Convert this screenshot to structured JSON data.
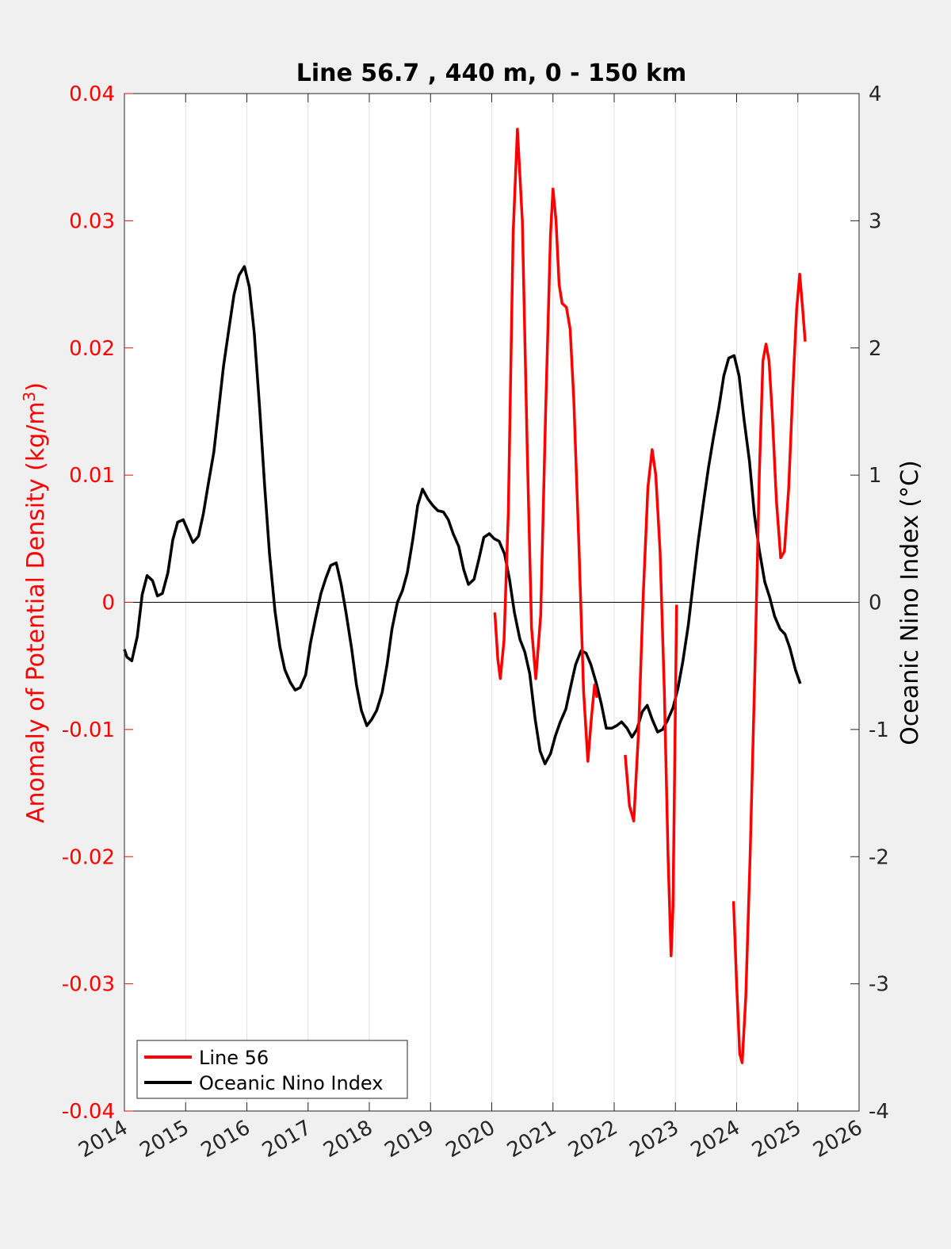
{
  "chart_data": {
    "type": "line",
    "title": "Line 56.7 , 440 m, 0 - 150 km",
    "ylabel_left": "Anomaly of Potential Density (kg/m³)",
    "ylabel_left_base": "Anomaly of Potential Density (kg/m",
    "ylabel_left_sup": "3",
    "ylabel_left_tail": ")",
    "ylabel_right": "Oceanic Nino Index (°C)",
    "xlim": [
      2014,
      2026
    ],
    "ylim_left": [
      -0.04,
      0.04
    ],
    "ylim_right": [
      -4,
      4
    ],
    "x_ticks": [
      "2014",
      "2015",
      "2016",
      "2017",
      "2018",
      "2019",
      "2020",
      "2021",
      "2022",
      "2023",
      "2024",
      "2025",
      "2026"
    ],
    "y_left_ticks": [
      "0.04",
      "0.03",
      "0.02",
      "0.01",
      "0",
      "-0.01",
      "-0.02",
      "-0.03",
      "-0.04"
    ],
    "y_right_ticks": [
      "4",
      "3",
      "2",
      "1",
      "0",
      "-1",
      "-2",
      "-3",
      "-4"
    ],
    "grid": "vertical",
    "legend_position": "bottom-left",
    "colors": {
      "left_axis": "#ff0000",
      "line56": "#ff0000",
      "oni": "#000000"
    },
    "series": [
      {
        "name": "Line 56",
        "axis": "left",
        "segments": [
          [
            [
              2020.05,
              -0.0008
            ],
            [
              2020.1,
              -0.0045
            ],
            [
              2020.14,
              -0.006
            ],
            [
              2020.2,
              -0.003
            ],
            [
              2020.27,
              0.007
            ],
            [
              2020.35,
              0.029
            ],
            [
              2020.42,
              0.0372
            ],
            [
              2020.5,
              0.03
            ],
            [
              2020.58,
              0.012
            ],
            [
              2020.65,
              -0.002
            ],
            [
              2020.72,
              -0.006
            ],
            [
              2020.8,
              -0.001
            ],
            [
              2020.88,
              0.015
            ],
            [
              2020.96,
              0.029
            ],
            [
              2021.0,
              0.0325
            ],
            [
              2021.05,
              0.03
            ],
            [
              2021.1,
              0.025
            ],
            [
              2021.15,
              0.0235
            ],
            [
              2021.22,
              0.0232
            ],
            [
              2021.28,
              0.0215
            ],
            [
              2021.34,
              0.016
            ],
            [
              2021.42,
              0.005
            ],
            [
              2021.5,
              -0.007
            ],
            [
              2021.57,
              -0.0125
            ],
            [
              2021.63,
              -0.009
            ],
            [
              2021.68,
              -0.0065
            ],
            [
              2021.72,
              -0.0075
            ]
          ],
          [
            [
              2022.18,
              -0.012
            ],
            [
              2022.25,
              -0.016
            ],
            [
              2022.32,
              -0.0172
            ],
            [
              2022.4,
              -0.01
            ],
            [
              2022.47,
              0.0
            ],
            [
              2022.55,
              0.009
            ],
            [
              2022.62,
              0.012
            ],
            [
              2022.68,
              0.01
            ],
            [
              2022.75,
              0.004
            ],
            [
              2022.82,
              -0.007
            ],
            [
              2022.88,
              -0.02
            ],
            [
              2022.93,
              -0.0278
            ],
            [
              2022.96,
              -0.024
            ],
            [
              2022.99,
              -0.012
            ],
            [
              2023.02,
              -0.0002
            ]
          ],
          [
            [
              2023.95,
              -0.0235
            ],
            [
              2024.0,
              -0.03
            ],
            [
              2024.05,
              -0.0355
            ],
            [
              2024.09,
              -0.0362
            ],
            [
              2024.15,
              -0.031
            ],
            [
              2024.22,
              -0.02
            ],
            [
              2024.3,
              -0.005
            ],
            [
              2024.37,
              0.01
            ],
            [
              2024.43,
              0.019
            ],
            [
              2024.48,
              0.0203
            ],
            [
              2024.53,
              0.019
            ],
            [
              2024.58,
              0.015
            ],
            [
              2024.65,
              0.008
            ],
            [
              2024.72,
              0.0035
            ],
            [
              2024.78,
              0.004
            ],
            [
              2024.85,
              0.009
            ],
            [
              2024.92,
              0.017
            ],
            [
              2024.98,
              0.023
            ],
            [
              2025.03,
              0.0258
            ],
            [
              2025.08,
              0.023
            ],
            [
              2025.12,
              0.0205
            ]
          ]
        ]
      },
      {
        "name": "Oceanic Nino Index",
        "axis": "right",
        "segments": [
          [
            [
              2014.0,
              -0.37
            ],
            [
              2014.04,
              -0.43
            ],
            [
              2014.12,
              -0.46
            ],
            [
              2014.21,
              -0.27
            ],
            [
              2014.29,
              0.06
            ],
            [
              2014.37,
              0.21
            ],
            [
              2014.46,
              0.17
            ],
            [
              2014.54,
              0.05
            ],
            [
              2014.62,
              0.07
            ],
            [
              2014.71,
              0.23
            ],
            [
              2014.79,
              0.49
            ],
            [
              2014.87,
              0.63
            ],
            [
              2014.96,
              0.65
            ],
            [
              2015.04,
              0.56
            ],
            [
              2015.12,
              0.47
            ],
            [
              2015.21,
              0.52
            ],
            [
              2015.29,
              0.7
            ],
            [
              2015.37,
              0.93
            ],
            [
              2015.46,
              1.18
            ],
            [
              2015.54,
              1.52
            ],
            [
              2015.62,
              1.86
            ],
            [
              2015.71,
              2.16
            ],
            [
              2015.79,
              2.42
            ],
            [
              2015.87,
              2.57
            ],
            [
              2015.96,
              2.64
            ],
            [
              2016.04,
              2.48
            ],
            [
              2016.12,
              2.12
            ],
            [
              2016.21,
              1.52
            ],
            [
              2016.29,
              0.92
            ],
            [
              2016.37,
              0.38
            ],
            [
              2016.46,
              -0.07
            ],
            [
              2016.54,
              -0.35
            ],
            [
              2016.62,
              -0.53
            ],
            [
              2016.71,
              -0.63
            ],
            [
              2016.79,
              -0.69
            ],
            [
              2016.87,
              -0.67
            ],
            [
              2016.96,
              -0.57
            ],
            [
              2017.04,
              -0.32
            ],
            [
              2017.12,
              -0.13
            ],
            [
              2017.21,
              0.07
            ],
            [
              2017.29,
              0.19
            ],
            [
              2017.37,
              0.29
            ],
            [
              2017.46,
              0.31
            ],
            [
              2017.54,
              0.14
            ],
            [
              2017.62,
              -0.08
            ],
            [
              2017.71,
              -0.36
            ],
            [
              2017.79,
              -0.65
            ],
            [
              2017.87,
              -0.85
            ],
            [
              2017.96,
              -0.97
            ],
            [
              2018.04,
              -0.92
            ],
            [
              2018.12,
              -0.85
            ],
            [
              2018.21,
              -0.71
            ],
            [
              2018.29,
              -0.49
            ],
            [
              2018.37,
              -0.21
            ],
            [
              2018.46,
              0.0
            ],
            [
              2018.54,
              0.09
            ],
            [
              2018.62,
              0.23
            ],
            [
              2018.71,
              0.49
            ],
            [
              2018.79,
              0.76
            ],
            [
              2018.87,
              0.89
            ],
            [
              2018.96,
              0.81
            ],
            [
              2019.04,
              0.76
            ],
            [
              2019.12,
              0.72
            ],
            [
              2019.21,
              0.71
            ],
            [
              2019.29,
              0.65
            ],
            [
              2019.37,
              0.54
            ],
            [
              2019.46,
              0.44
            ],
            [
              2019.54,
              0.26
            ],
            [
              2019.62,
              0.14
            ],
            [
              2019.71,
              0.18
            ],
            [
              2019.79,
              0.34
            ],
            [
              2019.87,
              0.51
            ],
            [
              2019.96,
              0.54
            ],
            [
              2020.04,
              0.5
            ],
            [
              2020.12,
              0.48
            ],
            [
              2020.21,
              0.38
            ],
            [
              2020.29,
              0.18
            ],
            [
              2020.37,
              -0.08
            ],
            [
              2020.46,
              -0.29
            ],
            [
              2020.54,
              -0.39
            ],
            [
              2020.62,
              -0.56
            ],
            [
              2020.71,
              -0.92
            ],
            [
              2020.79,
              -1.17
            ],
            [
              2020.87,
              -1.27
            ],
            [
              2020.96,
              -1.19
            ],
            [
              2021.04,
              -1.05
            ],
            [
              2021.12,
              -0.94
            ],
            [
              2021.21,
              -0.84
            ],
            [
              2021.29,
              -0.66
            ],
            [
              2021.37,
              -0.49
            ],
            [
              2021.46,
              -0.38
            ],
            [
              2021.54,
              -0.4
            ],
            [
              2021.62,
              -0.49
            ],
            [
              2021.71,
              -0.64
            ],
            [
              2021.79,
              -0.8
            ],
            [
              2021.87,
              -0.99
            ],
            [
              2021.96,
              -0.99
            ],
            [
              2022.04,
              -0.97
            ],
            [
              2022.12,
              -0.94
            ],
            [
              2022.21,
              -0.99
            ],
            [
              2022.29,
              -1.06
            ],
            [
              2022.37,
              -1.0
            ],
            [
              2022.46,
              -0.86
            ],
            [
              2022.54,
              -0.81
            ],
            [
              2022.62,
              -0.92
            ],
            [
              2022.71,
              -1.02
            ],
            [
              2022.79,
              -1.0
            ],
            [
              2022.87,
              -0.93
            ],
            [
              2022.96,
              -0.83
            ],
            [
              2023.04,
              -0.68
            ],
            [
              2023.12,
              -0.47
            ],
            [
              2023.21,
              -0.18
            ],
            [
              2023.29,
              0.15
            ],
            [
              2023.37,
              0.47
            ],
            [
              2023.46,
              0.79
            ],
            [
              2023.54,
              1.06
            ],
            [
              2023.62,
              1.29
            ],
            [
              2023.71,
              1.53
            ],
            [
              2023.79,
              1.78
            ],
            [
              2023.87,
              1.92
            ],
            [
              2023.96,
              1.94
            ],
            [
              2024.04,
              1.78
            ],
            [
              2024.12,
              1.44
            ],
            [
              2024.21,
              1.11
            ],
            [
              2024.29,
              0.69
            ],
            [
              2024.37,
              0.41
            ],
            [
              2024.46,
              0.16
            ],
            [
              2024.54,
              0.04
            ],
            [
              2024.62,
              -0.11
            ],
            [
              2024.71,
              -0.21
            ],
            [
              2024.79,
              -0.25
            ],
            [
              2024.87,
              -0.36
            ],
            [
              2024.96,
              -0.53
            ],
            [
              2025.04,
              -0.64
            ]
          ]
        ]
      }
    ]
  }
}
